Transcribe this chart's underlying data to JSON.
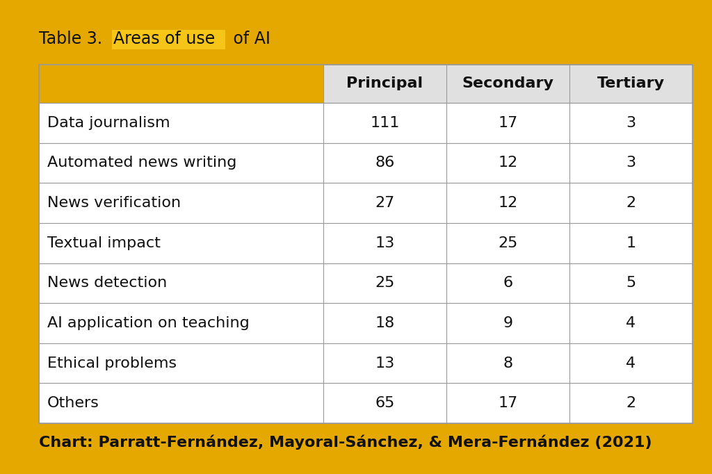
{
  "title_plain1": "Table 3. ",
  "title_highlight": "Areas of use",
  "title_plain2": " of AI",
  "highlight_color": "#F5C518",
  "outer_background": "#E5A800",
  "background_color": "#FFFFFF",
  "col_headers": [
    "Principal",
    "Secondary",
    "Tertiary"
  ],
  "rows": [
    {
      "label": "Data journalism",
      "values": [
        111,
        17,
        3
      ]
    },
    {
      "label": "Automated news writing",
      "values": [
        86,
        12,
        3
      ]
    },
    {
      "label": "News verification",
      "values": [
        27,
        12,
        2
      ]
    },
    {
      "label": "Textual impact",
      "values": [
        13,
        25,
        1
      ]
    },
    {
      "label": "News detection",
      "values": [
        25,
        6,
        5
      ]
    },
    {
      "label": "AI application on teaching",
      "values": [
        18,
        9,
        4
      ]
    },
    {
      "label": "Ethical problems",
      "values": [
        13,
        8,
        4
      ]
    },
    {
      "label": "Others",
      "values": [
        65,
        17,
        2
      ]
    }
  ],
  "header_bg": "#E0E0E0",
  "row_bg": "#FFFFFF",
  "grid_color": "#999999",
  "text_color": "#111111",
  "footer_text": "Chart: Parratt-Fernández, Mayoral-Sánchez, & Mera-Fernández (2021)",
  "title_fontsize": 17,
  "header_fontsize": 16,
  "cell_fontsize": 16,
  "footer_fontsize": 16,
  "label_fontsize": 16,
  "border_thickness": 18
}
